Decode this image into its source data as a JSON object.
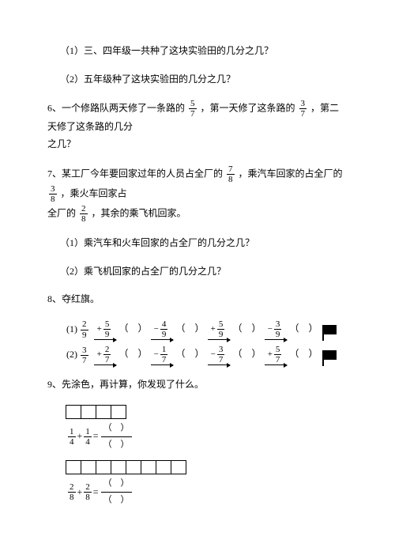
{
  "q_pre": {
    "sub1": "（1）三、四年级一共种了这块实验田的几分之几？",
    "sub2": "（2）五年级种了这块实验田的几分之几？"
  },
  "q6": {
    "t1": "6、一个修路队两天修了一条路的",
    "f1": {
      "n": "5",
      "d": "7"
    },
    "t2": "，第一天修了这条路的",
    "f2": {
      "n": "3",
      "d": "7"
    },
    "t3": "，第二天修了这条路的几分",
    "t4": "之几？"
  },
  "q7": {
    "t1": "7、某工厂今年要回家过年的人员占全厂的",
    "f1": {
      "n": "7",
      "d": "8"
    },
    "t2": "，乘汽车回家的占全厂的",
    "f2": {
      "n": "3",
      "d": "8"
    },
    "t3": "，乘火车回家占",
    "t4": "全厂的",
    "f3": {
      "n": "2",
      "d": "8"
    },
    "t5": "，其余的乘飞机回家。",
    "sub1": "（1）乘汽车和火车回家的占全厂的几分之几？",
    "sub2": "（2）乘飞机回家的占全厂的几分之几？"
  },
  "q8": {
    "title": "8、夺红旗。",
    "r1_label": "(1)",
    "r1_start": {
      "n": "2",
      "d": "9"
    },
    "r1_ops": [
      {
        "s": "+",
        "n": "5",
        "d": "9"
      },
      {
        "s": "−",
        "n": "4",
        "d": "9"
      },
      {
        "s": "+",
        "n": "5",
        "d": "9"
      },
      {
        "s": "−",
        "n": "3",
        "d": "9"
      }
    ],
    "r2_label": "(2)",
    "r2_start": {
      "n": "3",
      "d": "7"
    },
    "r2_ops": [
      {
        "s": "+",
        "n": "2",
        "d": "7"
      },
      {
        "s": "−",
        "n": "1",
        "d": "7"
      },
      {
        "s": "−",
        "n": "3",
        "d": "7"
      },
      {
        "s": "+",
        "n": "5",
        "d": "7"
      }
    ],
    "paren_l": "（",
    "paren_r": "）"
  },
  "q9": {
    "title": "9、先涂色，再计算，你发现了什么。",
    "row1_boxes": 4,
    "row1_a": {
      "n": "1",
      "d": "4"
    },
    "row1_b": {
      "n": "1",
      "d": "4"
    },
    "row2_boxes": 8,
    "row2_a": {
      "n": "2",
      "d": "8"
    },
    "row2_b": {
      "n": "2",
      "d": "8"
    },
    "plus": "+",
    "eq": "="
  },
  "colors": {
    "text": "#000000",
    "bg": "#ffffff"
  }
}
